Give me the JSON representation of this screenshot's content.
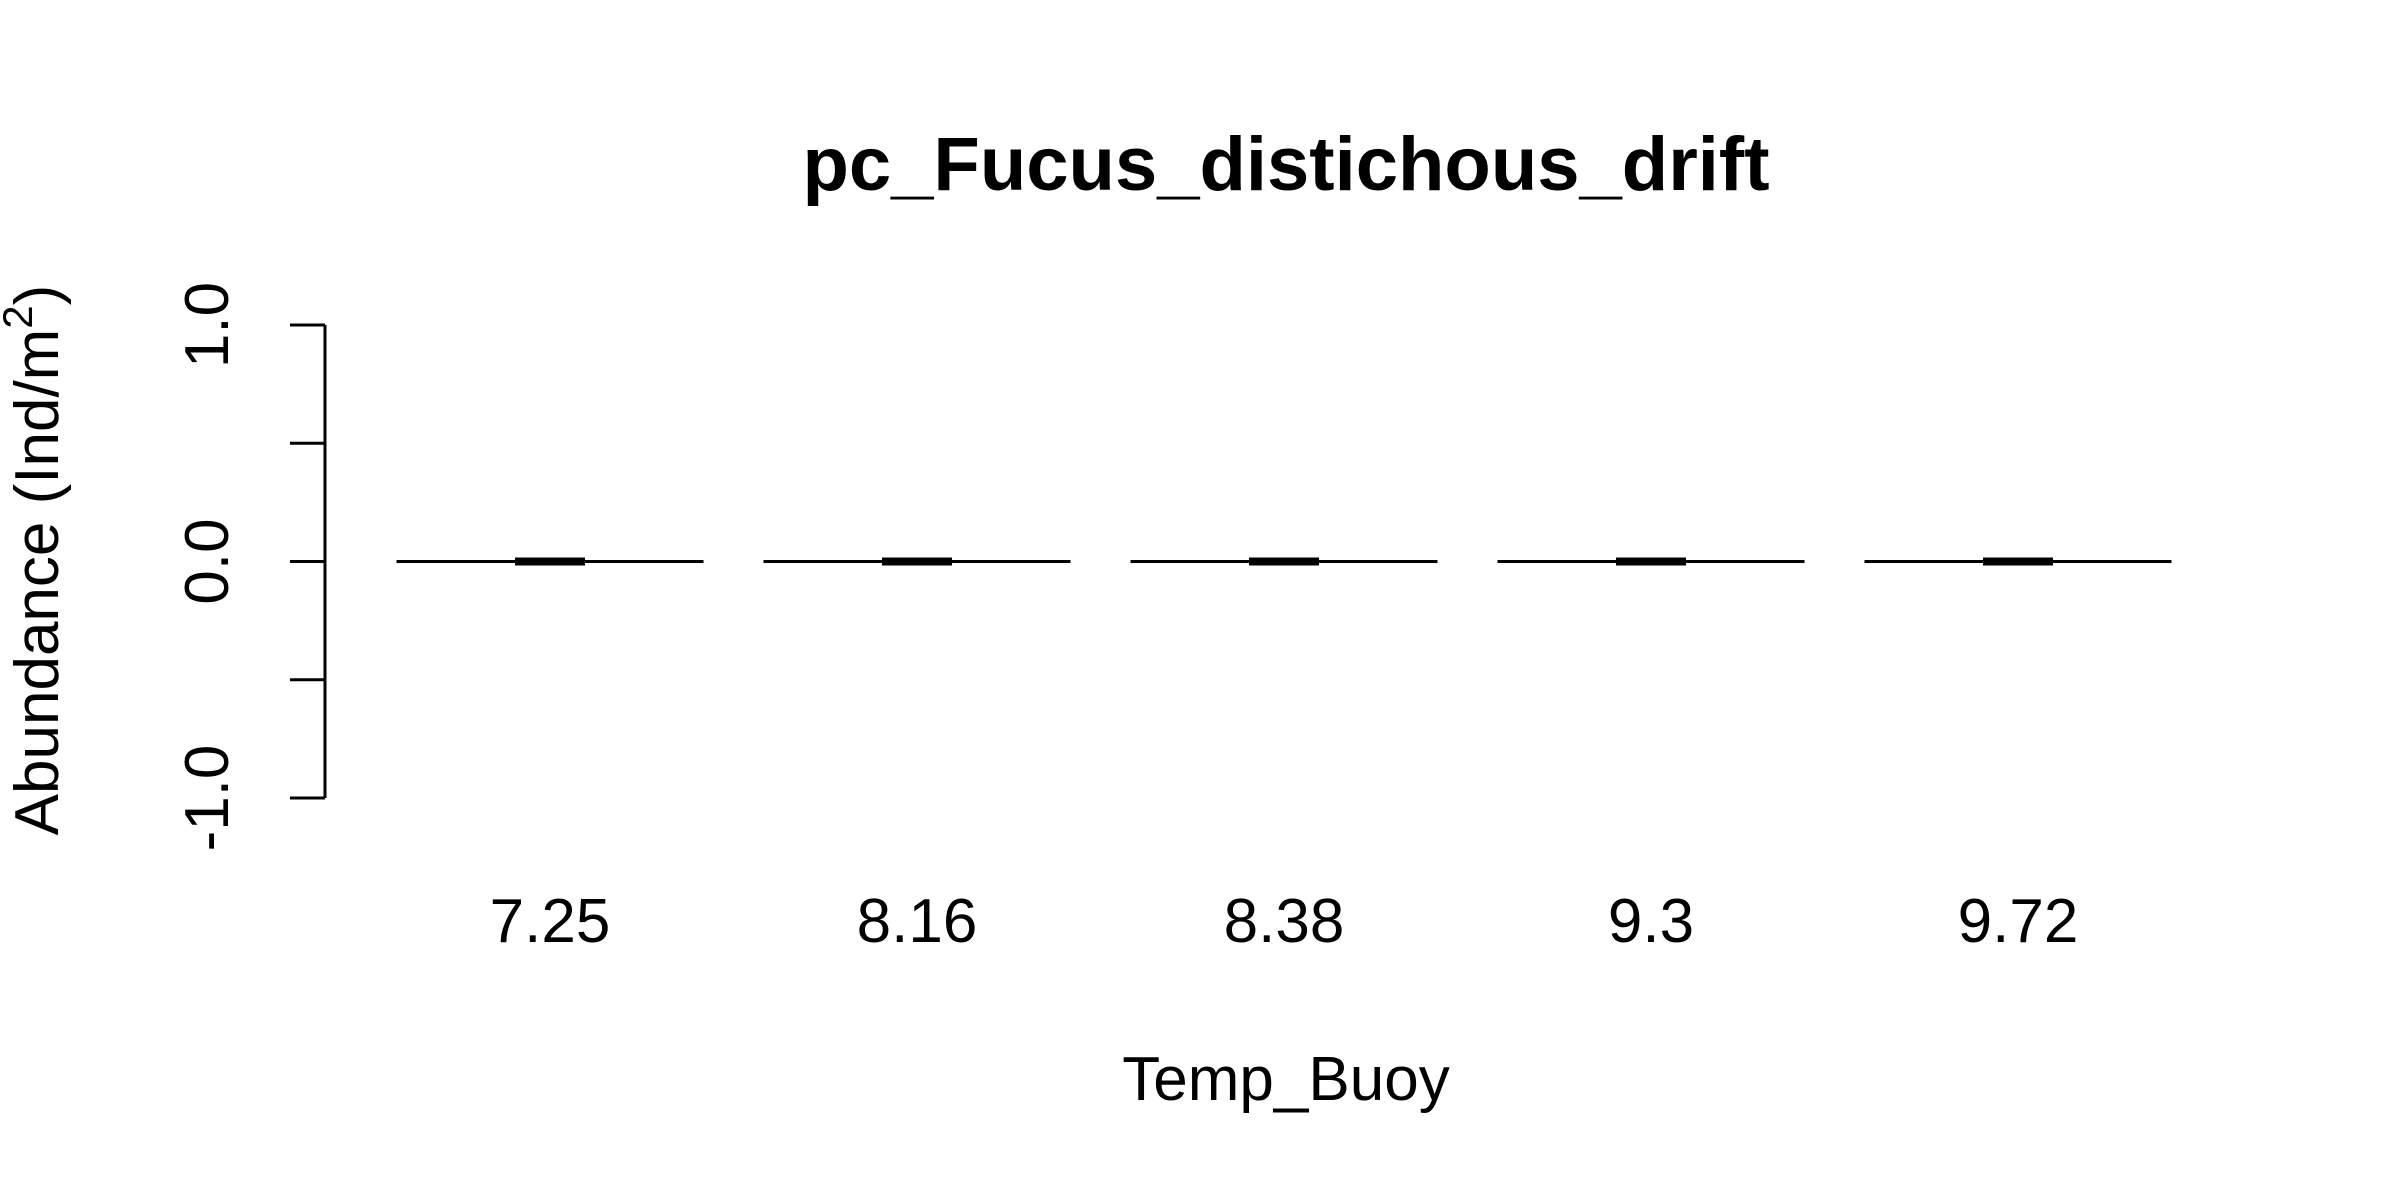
{
  "chart_data": {
    "type": "boxplot",
    "title": "pc_Fucus_distichous_drift",
    "xlabel": "Temp_Buoy",
    "ylabel": "Abundance (Ind/m",
    "ylabel_superscript": "2",
    "ylabel_close": ")",
    "ylim": [
      -1.0,
      1.0
    ],
    "yticks": [
      -1.0,
      -0.5,
      0.0,
      0.5,
      1.0
    ],
    "ytick_labels": [
      "-1.0",
      "",
      "0.0",
      "",
      "1.0"
    ],
    "categories": [
      "7.25",
      "8.16",
      "8.38",
      "9.3",
      "9.72"
    ],
    "boxes": [
      {
        "category": "7.25",
        "min": 0,
        "q1": 0,
        "median": 0,
        "q3": 0,
        "max": 0
      },
      {
        "category": "8.16",
        "min": 0,
        "q1": 0,
        "median": 0,
        "q3": 0,
        "max": 0
      },
      {
        "category": "8.38",
        "min": 0,
        "q1": 0,
        "median": 0,
        "q3": 0,
        "max": 0
      },
      {
        "category": "9.3",
        "min": 0,
        "q1": 0,
        "median": 0,
        "q3": 0,
        "max": 0
      },
      {
        "category": "9.72",
        "min": 0,
        "q1": 0,
        "median": 0,
        "q3": 0,
        "max": 0
      }
    ],
    "grid": false,
    "legend": "none"
  }
}
